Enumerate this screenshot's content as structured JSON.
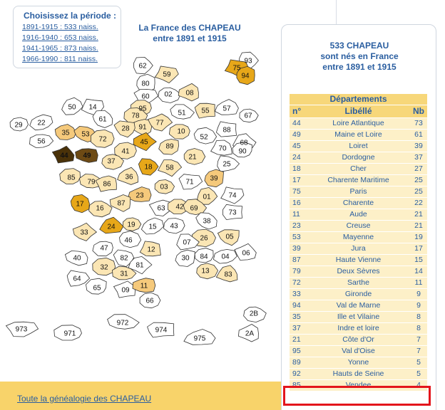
{
  "period_box": {
    "title": "Choisissez la période :",
    "links": [
      "1891-1915 : 533 naiss.",
      "1916-1940 : 653 naiss.",
      "1941-1965 : 873 naiss.",
      "1966-1990 : 811 naiss."
    ]
  },
  "map": {
    "title_line1": "La France des CHAPEAU",
    "title_line2": "entre 1891 et 1915",
    "colors": {
      "none": "#ffffff",
      "low": "#fbe6b4",
      "mid": "#f5c97b",
      "high": "#e7a719",
      "dark": "#6d4a14",
      "darker": "#4a3209"
    },
    "department_labels": [
      "62",
      "59",
      "80",
      "02",
      "08",
      "60",
      "95",
      "51",
      "55",
      "57",
      "67",
      "50",
      "14",
      "61",
      "78",
      "91",
      "77",
      "10",
      "52",
      "88",
      "68",
      "29",
      "22",
      "35",
      "53",
      "72",
      "28",
      "45",
      "89",
      "21",
      "70",
      "25",
      "90",
      "56",
      "44",
      "49",
      "41",
      "18",
      "58",
      "39",
      "37",
      "36",
      "71",
      "85",
      "79",
      "86",
      "23",
      "03",
      "01",
      "74",
      "17",
      "16",
      "87",
      "63",
      "42",
      "69",
      "73",
      "24",
      "19",
      "15",
      "43",
      "38",
      "26",
      "05",
      "33",
      "47",
      "46",
      "12",
      "07",
      "84",
      "04",
      "06",
      "40",
      "32",
      "82",
      "81",
      "30",
      "13",
      "83",
      "64",
      "65",
      "31",
      "09",
      "11",
      "66",
      "93",
      "75",
      "94",
      "2B",
      "2A",
      "973",
      "971",
      "972",
      "974",
      "975"
    ]
  },
  "footer": {
    "text": "Toute la généalogie des CHAPEAU"
  },
  "panel": {
    "title_line1": "533 CHAPEAU",
    "title_line2": "sont nés en France",
    "title_line3": "entre 1891 et 1915",
    "table_caption": "Départements",
    "headers": {
      "no": "n°",
      "lib": "Libéllé",
      "nb": "Nb"
    },
    "rows": [
      {
        "no": "44",
        "lib": "Loire Atlantique",
        "nb": "73"
      },
      {
        "no": "49",
        "lib": "Maine et Loire",
        "nb": "61"
      },
      {
        "no": "45",
        "lib": "Loiret",
        "nb": "39"
      },
      {
        "no": "24",
        "lib": "Dordogne",
        "nb": "37"
      },
      {
        "no": "18",
        "lib": "Cher",
        "nb": "27"
      },
      {
        "no": "17",
        "lib": "Charente Maritime",
        "nb": "25"
      },
      {
        "no": "75",
        "lib": "Paris",
        "nb": "25"
      },
      {
        "no": "16",
        "lib": "Charente",
        "nb": "22"
      },
      {
        "no": "11",
        "lib": "Aude",
        "nb": "21"
      },
      {
        "no": "23",
        "lib": "Creuse",
        "nb": "21"
      },
      {
        "no": "53",
        "lib": "Mayenne",
        "nb": "19"
      },
      {
        "no": "39",
        "lib": "Jura",
        "nb": "17"
      },
      {
        "no": "87",
        "lib": "Haute Vienne",
        "nb": "15"
      },
      {
        "no": "79",
        "lib": "Deux Sèvres",
        "nb": "14"
      },
      {
        "no": "72",
        "lib": "Sarthe",
        "nb": "11"
      },
      {
        "no": "33",
        "lib": "Gironde",
        "nb": "9"
      },
      {
        "no": "94",
        "lib": "Val de Marne",
        "nb": "9"
      },
      {
        "no": "35",
        "lib": "Ille et Vilaine",
        "nb": "8"
      },
      {
        "no": "37",
        "lib": "Indre et loire",
        "nb": "8"
      },
      {
        "no": "21",
        "lib": "Côte d'Or",
        "nb": "7"
      },
      {
        "no": "95",
        "lib": "Val d'Oise",
        "nb": "7"
      },
      {
        "no": "89",
        "lib": "Yonne",
        "nb": "5"
      },
      {
        "no": "92",
        "lib": "Hauts de Seine",
        "nb": "5"
      },
      {
        "no": "85",
        "lib": "Vendee",
        "nb": "4"
      }
    ]
  }
}
